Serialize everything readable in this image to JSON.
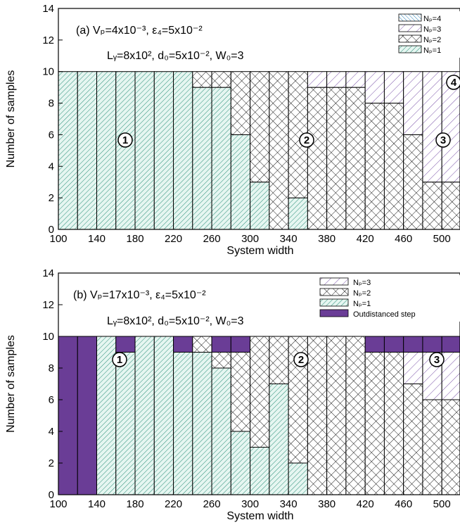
{
  "chart_data": [
    {
      "type": "bar",
      "stacked": true,
      "xlabel": "System width",
      "ylabel": "Number of samples",
      "ylim": [
        0,
        14
      ],
      "xticks": [
        "100",
        "140",
        "180",
        "220",
        "260",
        "300",
        "340",
        "380",
        "420",
        "460",
        "500"
      ],
      "yticks": [
        "0",
        "2",
        "4",
        "6",
        "8",
        "10",
        "12",
        "14"
      ],
      "categories": [
        110,
        130,
        150,
        170,
        190,
        210,
        230,
        250,
        270,
        290,
        310,
        330,
        350,
        370,
        390,
        410,
        430,
        450,
        470,
        490,
        510
      ],
      "series": [
        {
          "name": "Nₚ=1",
          "key": "p1",
          "values": [
            10,
            10,
            10,
            10,
            10,
            10,
            10,
            9,
            9,
            6,
            3,
            0,
            2,
            0,
            0,
            0,
            0,
            0,
            0,
            0,
            0
          ]
        },
        {
          "name": "Nₚ=2",
          "key": "p2",
          "values": [
            0,
            0,
            0,
            0,
            0,
            0,
            0,
            1,
            1,
            4,
            7,
            10,
            8,
            9,
            9,
            9,
            8,
            8,
            6,
            3,
            3
          ]
        },
        {
          "name": "Nₚ=3",
          "key": "p3",
          "values": [
            0,
            0,
            0,
            0,
            0,
            0,
            0,
            0,
            0,
            0,
            0,
            0,
            0,
            1,
            1,
            1,
            2,
            2,
            4,
            7,
            7
          ]
        },
        {
          "name": "Nₚ=4",
          "key": "p4",
          "values": [
            0,
            0,
            0,
            0,
            0,
            0,
            0,
            0,
            0,
            0,
            0,
            0,
            0,
            0,
            0,
            0,
            0,
            0,
            0,
            0,
            0
          ]
        }
      ],
      "legend": [
        {
          "label": "Nₚ=4",
          "key": "p4"
        },
        {
          "label": "Nₚ=3",
          "key": "p3"
        },
        {
          "label": "Nₚ=2",
          "key": "p2"
        },
        {
          "label": "Nₚ=1",
          "key": "p1"
        }
      ],
      "annotation_lines": [
        "(a) Vₚ=4x10⁻³, ε₄=5x10⁻²",
        "Lᵧ=8x10², d₀=5x10⁻², W₀=3"
      ],
      "region_labels": [
        "①",
        "②",
        "③",
        "④"
      ]
    },
    {
      "type": "bar",
      "stacked": true,
      "xlabel": "System width",
      "ylabel": "Number of samples",
      "ylim": [
        0,
        14
      ],
      "xticks": [
        "100",
        "140",
        "180",
        "220",
        "260",
        "300",
        "340",
        "380",
        "420",
        "460",
        "500"
      ],
      "yticks": [
        "0",
        "2",
        "4",
        "6",
        "8",
        "10",
        "12",
        "14"
      ],
      "categories": [
        110,
        130,
        150,
        170,
        190,
        210,
        230,
        250,
        270,
        290,
        310,
        330,
        350,
        370,
        390,
        410,
        430,
        450,
        470,
        490,
        510
      ],
      "series": [
        {
          "name": "Nₚ=1",
          "key": "p1",
          "values": [
            0,
            0,
            10,
            9,
            10,
            10,
            9,
            9,
            8,
            4,
            3,
            7,
            2,
            0,
            0,
            0,
            0,
            0,
            0,
            0,
            0
          ]
        },
        {
          "name": "Nₚ=2",
          "key": "p2",
          "values": [
            0,
            0,
            0,
            0,
            0,
            0,
            0,
            1,
            1,
            5,
            7,
            3,
            8,
            10,
            10,
            10,
            9,
            9,
            7,
            6,
            6
          ]
        },
        {
          "name": "Nₚ=3",
          "key": "p3",
          "values": [
            0,
            0,
            0,
            0,
            0,
            0,
            0,
            0,
            0,
            0,
            0,
            0,
            0,
            0,
            0,
            0,
            0,
            0,
            2,
            3,
            3
          ]
        },
        {
          "name": "Outdistanced step",
          "key": "od",
          "values": [
            10,
            10,
            0,
            1,
            0,
            0,
            1,
            0,
            1,
            1,
            0,
            0,
            0,
            0,
            0,
            0,
            1,
            1,
            1,
            1,
            1
          ]
        }
      ],
      "legend": [
        {
          "label": "Nₚ=3",
          "key": "p3"
        },
        {
          "label": "Nₚ=2",
          "key": "p2"
        },
        {
          "label": "Nₚ=1",
          "key": "p1"
        },
        {
          "label": "Outdistanced step",
          "key": "od"
        }
      ],
      "annotation_lines": [
        "(b) Vₚ=17x10⁻³, ε₄=5x10⁻²",
        "Lᵧ=8x10², d₀=5x10⁻², W₀=3"
      ],
      "region_labels": [
        "①",
        "②",
        "③"
      ]
    }
  ],
  "colors": {
    "p1_hatch": "#2a8f78",
    "p1_fill": "#e6f6f1",
    "p2_hatch": "#000000",
    "p3_hatch": "#7a52a8",
    "p4_hatch": "#2a7fb4",
    "outdistanced": "#6a3d96",
    "axis": "#000000"
  }
}
